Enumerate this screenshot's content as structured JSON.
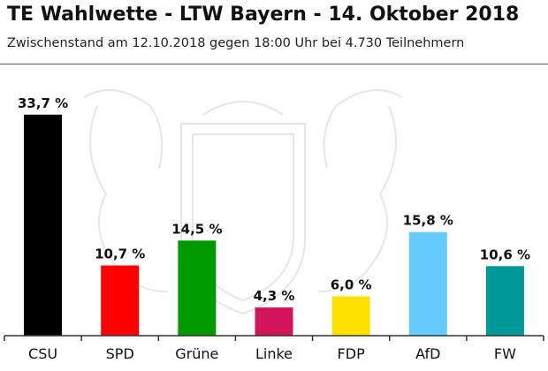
{
  "header": {
    "title": "TE Wahlwette - LTW Bayern - 14. Oktober 2018",
    "subtitle": "Zwischenstand am 12.10.2018 gegen 18:00 Uhr bei 4.730 Teilnehmern"
  },
  "chart_data": {
    "type": "bar",
    "categories": [
      "CSU",
      "SPD",
      "Grüne",
      "Linke",
      "FDP",
      "AfD",
      "FW"
    ],
    "values": [
      33.7,
      10.7,
      14.5,
      4.3,
      6.0,
      15.8,
      10.6
    ],
    "value_labels": [
      "33,7 %",
      "10,7 %",
      "14,5 %",
      "4,3 %",
      "6,0 %",
      "15,8 %",
      "10,6 %"
    ],
    "colors": [
      "#000000",
      "#ff0000",
      "#009a00",
      "#d4145a",
      "#ffe100",
      "#66ccff",
      "#009999"
    ],
    "ylim": [
      0,
      40
    ],
    "grid": false,
    "legend": "none"
  }
}
